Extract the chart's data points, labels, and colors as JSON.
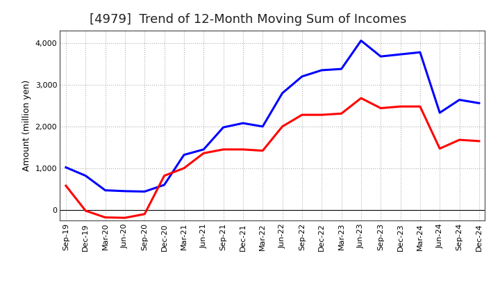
{
  "title": "[4979]  Trend of 12-Month Moving Sum of Incomes",
  "ylabel": "Amount (million yen)",
  "x_labels": [
    "Sep-19",
    "Dec-19",
    "Mar-20",
    "Jun-20",
    "Sep-20",
    "Dec-20",
    "Mar-21",
    "Jun-21",
    "Sep-21",
    "Dec-21",
    "Mar-22",
    "Jun-22",
    "Sep-22",
    "Dec-22",
    "Mar-23",
    "Jun-23",
    "Sep-23",
    "Dec-23",
    "Mar-24",
    "Jun-24",
    "Sep-24",
    "Dec-24"
  ],
  "ordinary_income": [
    1020,
    820,
    470,
    450,
    440,
    600,
    1320,
    1450,
    1980,
    2080,
    2000,
    2800,
    3200,
    3350,
    3380,
    4060,
    3680,
    3730,
    3780,
    2330,
    2640,
    2560
  ],
  "net_income": [
    580,
    -20,
    -180,
    -190,
    -100,
    820,
    1000,
    1360,
    1450,
    1450,
    1420,
    2000,
    2280,
    2280,
    2310,
    2680,
    2440,
    2480,
    2480,
    1470,
    1680,
    1650
  ],
  "ordinary_color": "#0000ff",
  "net_color": "#ff0000",
  "ylim": [
    -250,
    4300
  ],
  "yticks": [
    0,
    1000,
    2000,
    3000,
    4000
  ],
  "background_color": "#ffffff",
  "grid_color": "#b0b0b0",
  "title_fontsize": 13,
  "label_fontsize": 9,
  "tick_fontsize": 8,
  "legend_fontsize": 9.5,
  "line_width": 2.2
}
